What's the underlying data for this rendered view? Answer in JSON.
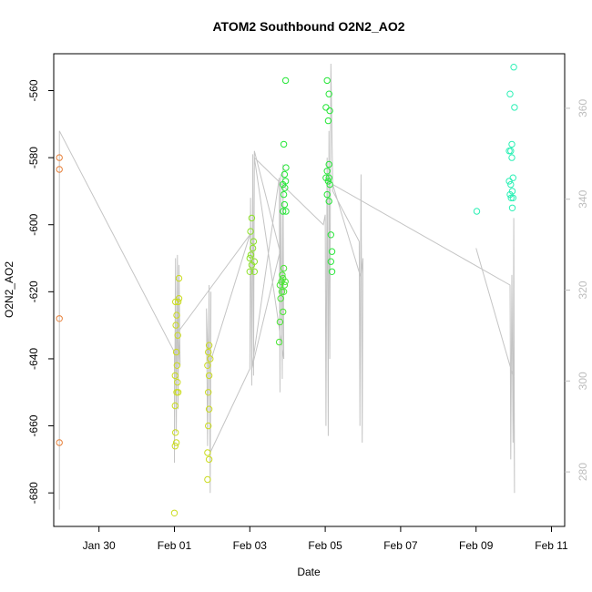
{
  "chart_data": {
    "type": "scatter",
    "title": "ATOM2 Southbound O2N2_AO2",
    "xlabel": "Date",
    "ylabel": "O2N2_AO2",
    "x_ticks": [
      {
        "day": 1,
        "label": "Jan 30"
      },
      {
        "day": 3,
        "label": "Feb 01"
      },
      {
        "day": 5,
        "label": "Feb 03"
      },
      {
        "day": 7,
        "label": "Feb 05"
      },
      {
        "day": 9,
        "label": "Feb 07"
      },
      {
        "day": 11,
        "label": "Feb 09"
      },
      {
        "day": 13,
        "label": "Feb 11"
      }
    ],
    "xlim": [
      -0.2,
      13.35
    ],
    "ylim": [
      -690,
      -549
    ],
    "y_ticks": [
      -560,
      -580,
      -600,
      -620,
      -640,
      -660,
      -680
    ],
    "right_axis": {
      "ylim": [
        268,
        372
      ],
      "ticks": [
        280,
        300,
        320,
        340,
        360
      ],
      "color": "#bdbdbd"
    },
    "grid": false,
    "legend": "none",
    "series": [
      {
        "color": "#E8803A",
        "points": [
          [
            -0.05,
            -580
          ],
          [
            -0.05,
            -583.5
          ],
          [
            -0.05,
            -628
          ],
          [
            -0.05,
            -665
          ]
        ]
      },
      {
        "color": "#CBDC1F",
        "points": [
          [
            3.0,
            -686
          ],
          [
            3.02,
            -666
          ],
          [
            3.05,
            -665
          ],
          [
            3.03,
            -662
          ],
          [
            3.02,
            -654
          ],
          [
            3.06,
            -650
          ],
          [
            3.1,
            -650
          ],
          [
            3.08,
            -647
          ],
          [
            3.02,
            -645
          ],
          [
            3.07,
            -642
          ],
          [
            3.05,
            -638
          ],
          [
            3.09,
            -633
          ],
          [
            3.04,
            -630
          ],
          [
            3.06,
            -627
          ],
          [
            3.1,
            -623
          ],
          [
            3.12,
            -622
          ],
          [
            3.03,
            -623
          ],
          [
            3.12,
            -616
          ],
          [
            3.88,
            -676
          ],
          [
            3.92,
            -670
          ],
          [
            3.88,
            -668
          ],
          [
            3.9,
            -660
          ],
          [
            3.92,
            -655
          ],
          [
            3.9,
            -650
          ],
          [
            3.92,
            -645
          ],
          [
            3.88,
            -642
          ],
          [
            3.95,
            -640
          ],
          [
            3.9,
            -638
          ],
          [
            3.92,
            -636
          ]
        ]
      },
      {
        "color": "#8DE228",
        "points": [
          [
            5.05,
            -598
          ],
          [
            5.02,
            -602
          ],
          [
            5.1,
            -605
          ],
          [
            5.08,
            -607
          ],
          [
            5.03,
            -609
          ],
          [
            5.0,
            -610
          ],
          [
            5.12,
            -611
          ],
          [
            5.05,
            -612
          ],
          [
            5.0,
            -614
          ],
          [
            5.12,
            -614
          ]
        ]
      },
      {
        "color": "#4BE635",
        "points": [
          [
            5.78,
            -635
          ],
          [
            5.8,
            -629
          ],
          [
            5.88,
            -626
          ],
          [
            5.82,
            -622
          ],
          [
            5.85,
            -620
          ],
          [
            5.9,
            -620
          ],
          [
            5.8,
            -618
          ],
          [
            5.84,
            -617
          ],
          [
            5.88,
            -616
          ],
          [
            5.92,
            -618
          ],
          [
            5.9,
            -613
          ],
          [
            5.86,
            -615
          ],
          [
            5.94,
            -617
          ]
        ]
      },
      {
        "color": "#26E638",
        "points": [
          [
            7.05,
            -557
          ],
          [
            7.1,
            -561
          ],
          [
            7.02,
            -565
          ],
          [
            7.12,
            -566
          ],
          [
            7.08,
            -569
          ],
          [
            7.1,
            -582
          ],
          [
            7.05,
            -584
          ],
          [
            7.1,
            -586
          ],
          [
            7.02,
            -586
          ],
          [
            7.08,
            -587
          ],
          [
            7.12,
            -588
          ],
          [
            7.05,
            -591
          ],
          [
            7.1,
            -593
          ],
          [
            7.15,
            -603
          ],
          [
            7.18,
            -608
          ],
          [
            7.15,
            -611
          ],
          [
            7.18,
            -614
          ],
          [
            5.95,
            -557
          ],
          [
            5.9,
            -576
          ],
          [
            5.96,
            -583
          ],
          [
            5.92,
            -585
          ],
          [
            5.95,
            -587
          ],
          [
            5.88,
            -588
          ],
          [
            5.93,
            -589
          ],
          [
            5.9,
            -591
          ],
          [
            5.92,
            -594
          ],
          [
            5.96,
            -596
          ],
          [
            5.88,
            -596
          ]
        ]
      },
      {
        "color": "#2BF0B5",
        "points": [
          [
            11.02,
            -596
          ],
          [
            11.9,
            -561
          ],
          [
            12.0,
            -553
          ],
          [
            12.02,
            -565
          ],
          [
            11.95,
            -576
          ],
          [
            11.88,
            -578
          ],
          [
            11.92,
            -578
          ],
          [
            11.95,
            -580
          ],
          [
            11.98,
            -586
          ],
          [
            11.88,
            -587
          ],
          [
            11.92,
            -588
          ],
          [
            11.96,
            -590
          ],
          [
            11.9,
            -591
          ],
          [
            11.93,
            -592
          ],
          [
            11.98,
            -592
          ],
          [
            11.96,
            -595
          ]
        ]
      }
    ],
    "trace_line": {
      "color": "#c4c4c4",
      "points": [
        [
          -0.05,
          -685
        ],
        [
          -0.05,
          -572
        ],
        [
          3.0,
          -638
        ],
        [
          3.0,
          -671
        ],
        [
          3.03,
          -610
        ],
        [
          3.05,
          -662
        ],
        [
          3.08,
          -609
        ],
        [
          3.1,
          -655
        ],
        [
          3.12,
          -612
        ],
        [
          3.15,
          -642
        ],
        [
          3.1,
          -632
        ],
        [
          5.0,
          -603
        ],
        [
          3.9,
          -643
        ],
        [
          3.85,
          -625
        ],
        [
          3.88,
          -666
        ],
        [
          3.92,
          -618
        ],
        [
          3.95,
          -680
        ],
        [
          3.97,
          -620
        ],
        [
          3.95,
          -668
        ],
        [
          5.0,
          -643
        ],
        [
          5.02,
          -592
        ],
        [
          5.05,
          -648
        ],
        [
          5.08,
          -579
        ],
        [
          5.1,
          -645
        ],
        [
          5.12,
          -578
        ],
        [
          5.8,
          -608
        ],
        [
          5.05,
          -643
        ],
        [
          5.78,
          -586
        ],
        [
          5.8,
          -650
        ],
        [
          5.82,
          -585
        ],
        [
          5.86,
          -646
        ],
        [
          5.88,
          -582
        ],
        [
          5.9,
          -640
        ],
        [
          5.12,
          -580
        ],
        [
          6.95,
          -600
        ],
        [
          7.0,
          -597
        ],
        [
          7.02,
          -660
        ],
        [
          7.05,
          -580
        ],
        [
          7.08,
          -663
        ],
        [
          7.1,
          -572
        ],
        [
          7.12,
          -640
        ],
        [
          7.15,
          -552
        ],
        [
          7.2,
          -590
        ],
        [
          7.9,
          -605
        ],
        [
          7.92,
          -660
        ],
        [
          7.95,
          -585
        ],
        [
          7.98,
          -665
        ],
        [
          8.0,
          -610
        ],
        [
          7.95,
          -616
        ],
        [
          7.2,
          -588
        ],
        [
          11.9,
          -618
        ],
        [
          11.92,
          -670
        ],
        [
          11.95,
          -615
        ],
        [
          11.98,
          -665
        ],
        [
          12.0,
          -598
        ],
        [
          12.02,
          -680
        ],
        [
          12.0,
          -646
        ],
        [
          11.0,
          -607
        ]
      ]
    }
  }
}
